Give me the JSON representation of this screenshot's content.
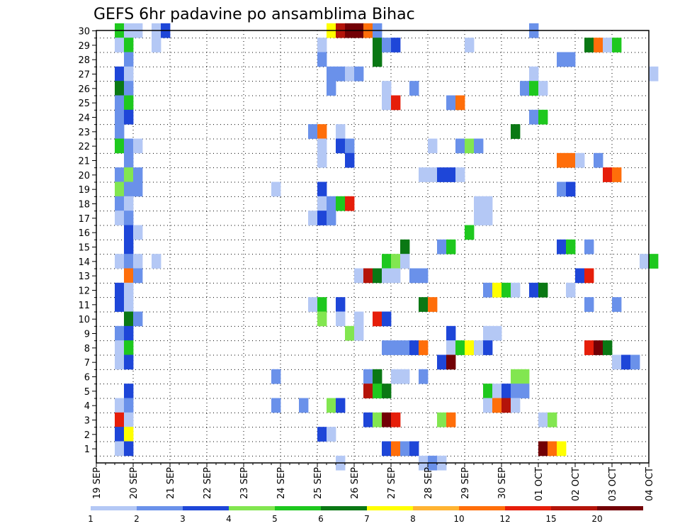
{
  "chart_data": {
    "type": "heatmap",
    "title": "GEFS 6hr padavine po ansamblima Bihac",
    "y_ticks": [
      "1",
      "2",
      "3",
      "4",
      "5",
      "6",
      "7",
      "8",
      "9",
      "10",
      "11",
      "12",
      "13",
      "14",
      "15",
      "16",
      "17",
      "18",
      "19",
      "20",
      "21",
      "22",
      "23",
      "24",
      "25",
      "26",
      "27",
      "28",
      "29",
      "30"
    ],
    "x_ticks": [
      "19 SEP",
      "20 SEP",
      "21 SEP",
      "22 SEP",
      "23 SEP",
      "24 SEP",
      "25 SEP",
      "26 SEP",
      "27 SEP",
      "28 SEP",
      "29 SEP",
      "30 SEP",
      "01 OCT",
      "02 OCT",
      "03 OCT",
      "04 OCT"
    ],
    "x_range_days": [
      0,
      15
    ],
    "y_range_members": [
      0,
      30
    ],
    "grid": true,
    "legend_position": "bottom",
    "legend": {
      "labels": [
        "1",
        "2",
        "3",
        "4",
        "5",
        "6",
        "7",
        "8",
        "10",
        "12",
        "15",
        "20"
      ],
      "colors": [
        "#b4c8f5",
        "#6a91ea",
        "#1e46d8",
        "#82e650",
        "#1ec81e",
        "#0a7814",
        "#ffff00",
        "#ffb432",
        "#ff6e0a",
        "#e61e0a",
        "#b4140a",
        "#730005"
      ]
    },
    "cells": [
      {
        "m": 30,
        "t": [
          [
            0.5,
            5
          ],
          [
            0.75,
            1
          ],
          [
            1,
            1
          ],
          [
            1.5,
            1
          ],
          [
            1.75,
            3
          ],
          [
            6.25,
            7
          ],
          [
            6.5,
            11
          ],
          [
            6.75,
            12
          ],
          [
            7,
            12
          ],
          [
            7.25,
            9
          ],
          [
            7.5,
            2
          ],
          [
            11.75,
            2
          ]
        ]
      },
      {
        "m": 29,
        "t": [
          [
            0.5,
            1
          ],
          [
            0.75,
            5
          ],
          [
            1.5,
            1
          ],
          [
            6,
            1
          ],
          [
            7.5,
            6
          ],
          [
            7.75,
            2
          ],
          [
            8,
            3
          ],
          [
            10,
            1
          ],
          [
            13.25,
            6
          ],
          [
            13.5,
            9
          ],
          [
            13.75,
            1
          ],
          [
            14,
            5
          ]
        ]
      },
      {
        "m": 28,
        "t": [
          [
            0.75,
            2
          ],
          [
            6,
            2
          ],
          [
            7.5,
            6
          ],
          [
            12.5,
            2
          ],
          [
            12.75,
            2
          ]
        ]
      },
      {
        "m": 27,
        "t": [
          [
            0.5,
            3
          ],
          [
            0.75,
            1
          ],
          [
            6.25,
            2
          ],
          [
            6.5,
            2
          ],
          [
            6.75,
            1
          ],
          [
            7,
            2
          ],
          [
            11.75,
            1
          ],
          [
            15,
            1
          ]
        ]
      },
      {
        "m": 26,
        "t": [
          [
            0.5,
            6
          ],
          [
            0.75,
            2
          ],
          [
            6.25,
            2
          ],
          [
            7.75,
            1
          ],
          [
            8.5,
            2
          ],
          [
            11.5,
            2
          ],
          [
            11.75,
            5
          ],
          [
            12,
            1
          ]
        ]
      },
      {
        "m": 25,
        "t": [
          [
            0.5,
            2
          ],
          [
            0.75,
            5
          ],
          [
            7.75,
            1
          ],
          [
            8,
            10
          ],
          [
            9.5,
            2
          ],
          [
            9.75,
            9
          ]
        ]
      },
      {
        "m": 24,
        "t": [
          [
            0.5,
            2
          ],
          [
            0.75,
            3
          ],
          [
            11.75,
            2
          ],
          [
            12,
            5
          ]
        ]
      },
      {
        "m": 23,
        "t": [
          [
            0.5,
            2
          ],
          [
            5.75,
            2
          ],
          [
            6,
            9
          ],
          [
            6.5,
            1
          ],
          [
            11.25,
            6
          ]
        ]
      },
      {
        "m": 22,
        "t": [
          [
            0.5,
            5
          ],
          [
            0.75,
            2
          ],
          [
            1,
            1
          ],
          [
            6,
            1
          ],
          [
            6.5,
            3
          ],
          [
            6.75,
            2
          ],
          [
            9,
            1
          ],
          [
            9.75,
            2
          ],
          [
            10,
            4
          ],
          [
            10.25,
            2
          ]
        ]
      },
      {
        "m": 21,
        "t": [
          [
            0.75,
            2
          ],
          [
            6,
            1
          ],
          [
            6.75,
            3
          ],
          [
            12.5,
            9
          ],
          [
            12.75,
            9
          ],
          [
            13,
            1
          ],
          [
            13.5,
            2
          ]
        ]
      },
      {
        "m": 20,
        "t": [
          [
            0.5,
            2
          ],
          [
            0.75,
            4
          ],
          [
            1,
            2
          ],
          [
            8.75,
            1
          ],
          [
            9,
            1
          ],
          [
            9.25,
            3
          ],
          [
            9.5,
            3
          ],
          [
            9.75,
            1
          ],
          [
            13.75,
            10
          ],
          [
            14,
            9
          ]
        ]
      },
      {
        "m": 19,
        "t": [
          [
            0.5,
            4
          ],
          [
            0.75,
            2
          ],
          [
            1,
            2
          ],
          [
            4.75,
            1
          ],
          [
            6,
            3
          ],
          [
            12.5,
            2
          ],
          [
            12.75,
            3
          ]
        ]
      },
      {
        "m": 18,
        "t": [
          [
            0.5,
            2
          ],
          [
            0.75,
            1
          ],
          [
            6,
            1
          ],
          [
            6.25,
            2
          ],
          [
            6.5,
            5
          ],
          [
            6.75,
            10
          ],
          [
            10.25,
            1
          ],
          [
            10.5,
            1
          ]
        ]
      },
      {
        "m": 17,
        "t": [
          [
            0.5,
            1
          ],
          [
            0.75,
            2
          ],
          [
            5.75,
            1
          ],
          [
            6,
            3
          ],
          [
            6.25,
            2
          ],
          [
            10.25,
            1
          ],
          [
            10.5,
            1
          ]
        ]
      },
      {
        "m": 16,
        "t": [
          [
            0.75,
            3
          ],
          [
            1,
            1
          ],
          [
            10,
            5
          ]
        ]
      },
      {
        "m": 15,
        "t": [
          [
            0.75,
            3
          ],
          [
            8.25,
            6
          ],
          [
            9.25,
            2
          ],
          [
            9.5,
            5
          ],
          [
            12.5,
            3
          ],
          [
            12.75,
            5
          ],
          [
            13.25,
            2
          ]
        ]
      },
      {
        "m": 14,
        "t": [
          [
            0.5,
            1
          ],
          [
            0.75,
            2
          ],
          [
            1,
            1
          ],
          [
            1.5,
            1
          ],
          [
            7.75,
            5
          ],
          [
            8,
            4
          ],
          [
            8.25,
            1
          ],
          [
            14.75,
            1
          ],
          [
            15,
            5
          ]
        ]
      },
      {
        "m": 13,
        "t": [
          [
            0.75,
            9
          ],
          [
            1,
            2
          ],
          [
            7,
            1
          ],
          [
            7.25,
            11
          ],
          [
            7.5,
            6
          ],
          [
            7.75,
            1
          ],
          [
            8,
            1
          ],
          [
            8.5,
            2
          ],
          [
            8.75,
            2
          ],
          [
            13,
            3
          ],
          [
            13.25,
            10
          ]
        ]
      },
      {
        "m": 12,
        "t": [
          [
            0.5,
            3
          ],
          [
            0.75,
            1
          ],
          [
            10.5,
            2
          ],
          [
            10.75,
            7
          ],
          [
            11,
            5
          ],
          [
            11.25,
            1
          ],
          [
            11.75,
            3
          ],
          [
            12,
            6
          ],
          [
            12.75,
            1
          ]
        ]
      },
      {
        "m": 11,
        "t": [
          [
            0.5,
            3
          ],
          [
            0.75,
            1
          ],
          [
            5.75,
            1
          ],
          [
            6,
            5
          ],
          [
            6.5,
            3
          ],
          [
            8.75,
            6
          ],
          [
            9,
            9
          ],
          [
            13.25,
            2
          ],
          [
            14,
            2
          ]
        ]
      },
      {
        "m": 10,
        "t": [
          [
            0.75,
            6
          ],
          [
            1,
            2
          ],
          [
            6,
            4
          ],
          [
            6.5,
            1
          ],
          [
            7,
            1
          ],
          [
            7.5,
            10
          ],
          [
            7.75,
            3
          ]
        ]
      },
      {
        "m": 9,
        "t": [
          [
            0.5,
            2
          ],
          [
            0.75,
            3
          ],
          [
            6.75,
            4
          ],
          [
            7,
            1
          ],
          [
            9.5,
            3
          ],
          [
            10.5,
            1
          ],
          [
            10.75,
            1
          ]
        ]
      },
      {
        "m": 8,
        "t": [
          [
            0.5,
            1
          ],
          [
            0.75,
            5
          ],
          [
            7.75,
            2
          ],
          [
            8,
            2
          ],
          [
            8.25,
            2
          ],
          [
            8.5,
            3
          ],
          [
            8.75,
            9
          ],
          [
            9.5,
            1
          ],
          [
            9.75,
            5
          ],
          [
            10,
            7
          ],
          [
            10.25,
            1
          ],
          [
            10.5,
            3
          ],
          [
            13.25,
            10
          ],
          [
            13.5,
            12
          ],
          [
            13.75,
            6
          ]
        ]
      },
      {
        "m": 7,
        "t": [
          [
            0.5,
            1
          ],
          [
            0.75,
            3
          ],
          [
            9.25,
            3
          ],
          [
            9.5,
            12
          ],
          [
            14,
            1
          ],
          [
            14.25,
            3
          ],
          [
            14.5,
            2
          ]
        ]
      },
      {
        "m": 6,
        "t": [
          [
            4.75,
            2
          ],
          [
            7.25,
            2
          ],
          [
            7.5,
            6
          ],
          [
            8,
            1
          ],
          [
            8.25,
            1
          ],
          [
            8.75,
            2
          ],
          [
            11.25,
            4
          ],
          [
            11.5,
            4
          ]
        ]
      },
      {
        "m": 5,
        "t": [
          [
            0.75,
            3
          ],
          [
            7.25,
            11
          ],
          [
            7.5,
            5
          ],
          [
            7.75,
            6
          ],
          [
            10.5,
            5
          ],
          [
            10.75,
            1
          ],
          [
            11,
            3
          ],
          [
            11.25,
            2
          ],
          [
            11.5,
            2
          ]
        ]
      },
      {
        "m": 4,
        "t": [
          [
            0.5,
            1
          ],
          [
            0.75,
            2
          ],
          [
            4.75,
            2
          ],
          [
            5.5,
            2
          ],
          [
            6.25,
            4
          ],
          [
            6.5,
            3
          ],
          [
            10.5,
            1
          ],
          [
            10.75,
            9
          ],
          [
            11,
            11
          ],
          [
            11.25,
            1
          ]
        ]
      },
      {
        "m": 3,
        "t": [
          [
            0.5,
            10
          ],
          [
            0.75,
            1
          ],
          [
            7.25,
            3
          ],
          [
            7.5,
            4
          ],
          [
            7.75,
            12
          ],
          [
            8,
            10
          ],
          [
            9.25,
            4
          ],
          [
            9.5,
            9
          ],
          [
            12,
            1
          ],
          [
            12.25,
            4
          ]
        ]
      },
      {
        "m": 2,
        "t": [
          [
            0.5,
            3
          ],
          [
            0.75,
            7
          ],
          [
            6,
            3
          ],
          [
            6.25,
            1
          ]
        ]
      },
      {
        "m": 1,
        "t": [
          [
            0.5,
            1
          ],
          [
            0.75,
            3
          ],
          [
            7.75,
            3
          ],
          [
            8,
            9
          ],
          [
            8.25,
            2
          ],
          [
            8.5,
            3
          ],
          [
            12,
            12
          ],
          [
            12.25,
            9
          ],
          [
            12.5,
            7
          ]
        ]
      },
      {
        "m": 0,
        "t": [
          [
            6.5,
            1
          ],
          [
            8.75,
            1
          ],
          [
            9,
            2
          ],
          [
            9.25,
            1
          ]
        ]
      }
    ]
  }
}
